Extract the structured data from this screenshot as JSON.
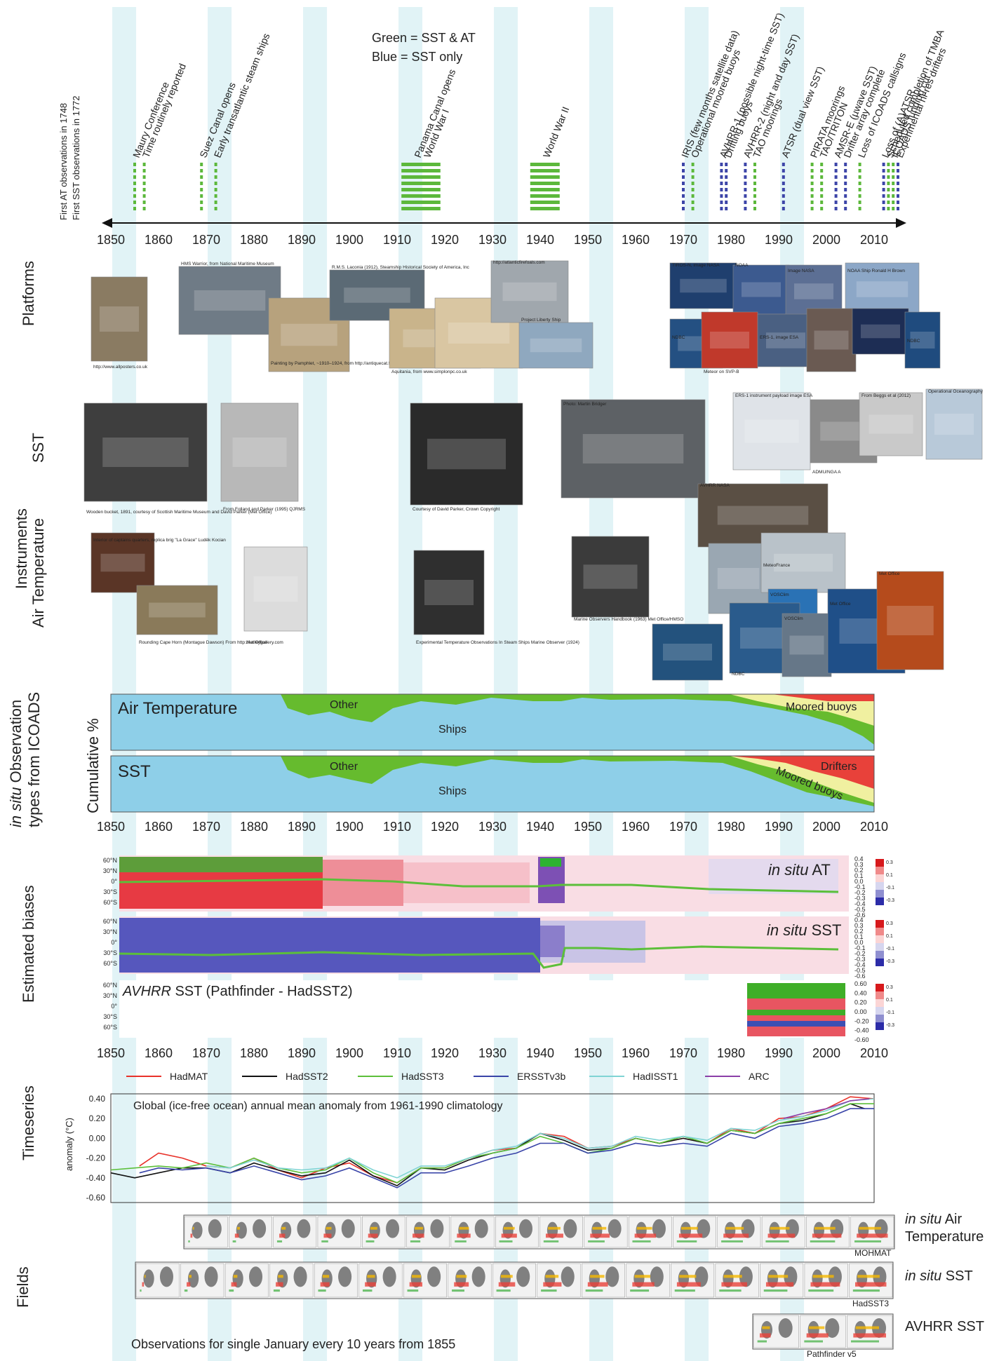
{
  "legend_top": {
    "green_text": "Green = SST & AT",
    "blue_text": "Blue = SST only"
  },
  "first_obs": [
    "First AT observations in 1748",
    "First SST observations in 1772"
  ],
  "years_axis": [
    "1850",
    "1860",
    "1870",
    "1880",
    "1890",
    "1900",
    "1910",
    "1920",
    "1930",
    "1940",
    "1950",
    "1960",
    "1970",
    "1980",
    "1990",
    "2000",
    "2010"
  ],
  "events": [
    {
      "year": 1855,
      "label": "Maury Conference",
      "color": "green",
      "bars": 1
    },
    {
      "year": 1857,
      "label": "Time routinely reported",
      "color": "green",
      "bars": 1
    },
    {
      "year": 1869,
      "label": "Suez Canal opens",
      "color": "green",
      "bars": 1
    },
    {
      "year": 1872,
      "label": "Early transatlantic steam ships",
      "color": "green",
      "bars": 1
    },
    {
      "year": 1914,
      "label": "Panama Canal opens",
      "color": "green",
      "bars": 8
    },
    {
      "year": 1916,
      "label": "World War I",
      "color": "green",
      "bars": 8
    },
    {
      "year": 1941,
      "label": "World War II",
      "color": "green",
      "bars": 7
    },
    {
      "year": 1970,
      "label": "IRIS (few months satellite data)",
      "color": "blue",
      "bars": 1
    },
    {
      "year": 1972,
      "label": "Operational moored buoys",
      "color": "green",
      "bars": 1
    },
    {
      "year": 1978,
      "label": "AVHRR-1 (possible night-time SST)",
      "color": "blue",
      "bars": 1
    },
    {
      "year": 1979,
      "label": "Drifting buoys",
      "color": "blue",
      "bars": 1
    },
    {
      "year": 1983,
      "label": "AVHRR-2 (night and day SST)",
      "color": "blue",
      "bars": 1
    },
    {
      "year": 1985,
      "label": "TAO moorings",
      "color": "green",
      "bars": 1
    },
    {
      "year": 1991,
      "label": "ATSR (dual view SST)",
      "color": "blue",
      "bars": 1
    },
    {
      "year": 1997,
      "label": "PIRATA moorings",
      "color": "green",
      "bars": 1
    },
    {
      "year": 1999,
      "label": "TAO/TRITON",
      "color": "green",
      "bars": 1
    },
    {
      "year": 2002,
      "label": "AMSR-E (µwave SST)",
      "color": "blue",
      "bars": 1
    },
    {
      "year": 2004,
      "label": "Drifter array complete",
      "color": "blue",
      "bars": 1
    },
    {
      "year": 2007,
      "label": "Loss of ICOADS callsigns",
      "color": "green",
      "bars": 1
    },
    {
      "year": 2012,
      "label": "Loss of (A)ATSR",
      "color": "blue",
      "bars": 1
    },
    {
      "year": 2013,
      "label": "Scheduled completion of TMBA",
      "color": "green",
      "bars": 1
    },
    {
      "year": 2014,
      "label": "ICOADS funding cut",
      "color": "green",
      "bars": 1
    },
    {
      "year": 2015,
      "label": "Experimental hi-res drifters",
      "color": "blue",
      "bars": 1
    }
  ],
  "sections": {
    "platforms": "Platforms",
    "instruments_sst": "SST",
    "instruments": "Instruments",
    "instruments_at": "Air Temperature",
    "insitu_obs_1": "in situ",
    "insitu_obs_2": " Observation",
    "insitu_obs_3": "types from ICOADS",
    "cumulative": "Cumulative %",
    "biases": "Estimated biases",
    "timeseries": "Timeseries",
    "fields": "Fields"
  },
  "platform_captions": [
    "http://www.allposters.co.uk",
    "HMS Warrior, from National Maritime Museum",
    "Painting by Pamphlet, ~1910–1924, from http://antiquecat.flinkblue.etherford.com",
    "R.M.S. Laconia (1912), Steamship Historical Society of America, Inc",
    "Aquitania, from www.simplonpc.co.uk",
    "http://atlanticfirefoals.com",
    "Project Liberty Ship",
    "TIROS-N, image NASA",
    "NOAA",
    "Image NASA",
    "NOAA Ship Ronald H Brown",
    "NDBC",
    "Meteor on SVP-B",
    "ERS-1, image ESA",
    "NDBC"
  ],
  "instrument_captions": [
    "Wooden bucket, 1891, courtesy of Scottish Maritime Museum and David Parker (Met Office)",
    "From Folland and Parker (1995) QJRMS",
    "Courtesy of David Parker, Crown Copyright",
    "Photo: Martin Bridger",
    "ERS-1 instrument payload image ESA",
    "AVHRR NASA",
    "From Beggs et al (2012)",
    "Operational Oceanography",
    "ADMU/NGA A",
    "Interior of captains quarters, replica brig \"La Grace\" Luděk Kocian",
    "Rounding Cape Horn (Montague Dawson) From http://valleygallery.com",
    "Met Office",
    "Experimental Temperature Observations In Steam Ships Marine Observer (1924)",
    "Marine Observers Handbook (1963) Met Office/HMSO",
    "MeteoFrance",
    "VOSClim",
    "VOSClim",
    "Met Office",
    "NDBC",
    "NDBC",
    "MeteoFrance"
  ],
  "obs_types": {
    "at_title": "Air Temperature",
    "sst_title": "SST",
    "other": "Other",
    "ships": "Ships",
    "moored_buoys": "Moored buoys",
    "drifters": "Drifters",
    "colors": {
      "ships": "#8ecfe8",
      "other": "#66bb2e",
      "moored": "#f0f0a0",
      "drifters": "#e8413a"
    }
  },
  "bias_panels": {
    "at_label_italic": "in situ",
    "at_label": " AT",
    "sst_label_italic": "in situ",
    "sst_label": " SST",
    "avhrr_label_italic": "AVHRR",
    "avhrr_label": " SST (Pathfinder - HadSST2)",
    "lat_ticks": [
      "60°N",
      "30°N",
      "0°",
      "30°S",
      "60°S"
    ],
    "right_ticks": [
      "0.4",
      "0.3",
      "0.2",
      "0.1",
      "0.0",
      "-0.1",
      "-0.2",
      "-0.3",
      "-0.4",
      "-0.5",
      "-0.6"
    ],
    "right_ticks_avhrr": [
      "0.60",
      "0.40",
      "0.20",
      "0.00",
      "-0.20",
      "-0.40",
      "-0.60"
    ],
    "cbar_ticks": [
      "0.3",
      "0.1",
      "-0.1",
      "-0.3"
    ]
  },
  "timeseries_legend": [
    {
      "name": "HadMAT",
      "color": "#e8322a"
    },
    {
      "name": "HadSST2",
      "color": "#111111"
    },
    {
      "name": "HadSST3",
      "color": "#5cbf3a"
    },
    {
      "name": "ERSSTv3b",
      "color": "#3944a8"
    },
    {
      "name": "HadISST1",
      "color": "#7fd4d4"
    },
    {
      "name": "ARC",
      "color": "#8b3fa8"
    }
  ],
  "timeseries_title": "Global (ice-free ocean) annual mean  anomaly from 1961-1990 climatology",
  "timeseries_ylabel": "anomaly (°C)",
  "timeseries_yticks": [
    "0.40",
    "0.20",
    "0.00",
    "-0.20",
    "-0.40",
    "-0.60"
  ],
  "fields": {
    "at_italic": "in situ",
    "at_label_1": " Air",
    "at_label_2": "Temperature",
    "at_source": "MOHMAT",
    "sst_italic": "in situ",
    "sst_label": " SST",
    "sst_source": "HadSST3",
    "avhrr_label": "AVHRR SST",
    "avhrr_source": "Pathfinder v5",
    "footer": "Observations for single January every 10 years from 1855"
  },
  "chart_data": {
    "type": "line",
    "title": "Global (ice-free ocean) annual mean  anomaly from 1961-1990 climatology",
    "xlabel": "",
    "ylabel": "anomaly (°C)",
    "xlim": [
      1850,
      2010
    ],
    "ylim": [
      -0.65,
      0.45
    ],
    "series": [
      {
        "name": "HadMAT",
        "x": [
          1856,
          1860,
          1865,
          1870,
          1875,
          1880,
          1885,
          1890,
          1895,
          1900,
          1905,
          1910,
          1915,
          1920,
          1925,
          1930,
          1935,
          1940,
          1945,
          1950,
          1955,
          1960,
          1965,
          1970,
          1975,
          1980,
          1985,
          1990,
          1995,
          2000,
          2005,
          2010
        ],
        "y": [
          -0.28,
          -0.15,
          -0.2,
          -0.28,
          -0.3,
          -0.2,
          -0.32,
          -0.4,
          -0.3,
          -0.25,
          -0.38,
          -0.45,
          -0.3,
          -0.3,
          -0.2,
          -0.12,
          -0.1,
          0.05,
          0.02,
          -0.1,
          -0.08,
          0.0,
          -0.05,
          0.0,
          -0.05,
          0.1,
          0.05,
          0.2,
          0.22,
          0.3,
          0.42,
          0.4
        ]
      },
      {
        "name": "HadSST2",
        "x": [
          1850,
          1855,
          1860,
          1865,
          1870,
          1875,
          1880,
          1885,
          1890,
          1895,
          1900,
          1905,
          1910,
          1915,
          1920,
          1925,
          1930,
          1935,
          1940,
          1945,
          1950,
          1955,
          1960,
          1965,
          1970,
          1975,
          1980,
          1985,
          1990,
          1995,
          2000,
          2005,
          2008
        ],
        "y": [
          -0.35,
          -0.4,
          -0.35,
          -0.3,
          -0.3,
          -0.35,
          -0.25,
          -0.32,
          -0.38,
          -0.35,
          -0.22,
          -0.38,
          -0.48,
          -0.3,
          -0.32,
          -0.22,
          -0.15,
          -0.1,
          0.05,
          -0.02,
          -0.12,
          -0.1,
          0.0,
          -0.05,
          0.0,
          -0.05,
          0.08,
          0.05,
          0.15,
          0.18,
          0.25,
          0.35,
          0.3
        ]
      },
      {
        "name": "HadSST3",
        "x": [
          1850,
          1855,
          1860,
          1865,
          1870,
          1875,
          1880,
          1885,
          1890,
          1895,
          1900,
          1905,
          1910,
          1915,
          1920,
          1925,
          1930,
          1935,
          1940,
          1945,
          1950,
          1955,
          1960,
          1965,
          1970,
          1975,
          1980,
          1985,
          1990,
          1995,
          2000,
          2005,
          2010
        ],
        "y": [
          -0.32,
          -0.3,
          -0.28,
          -0.3,
          -0.25,
          -0.3,
          -0.2,
          -0.3,
          -0.35,
          -0.32,
          -0.2,
          -0.35,
          -0.45,
          -0.3,
          -0.3,
          -0.2,
          -0.15,
          -0.1,
          0.02,
          -0.05,
          -0.15,
          -0.1,
          0.0,
          -0.05,
          0.02,
          -0.05,
          0.08,
          0.05,
          0.15,
          0.2,
          0.25,
          0.35,
          0.35
        ]
      },
      {
        "name": "ERSSTv3b",
        "x": [
          1856,
          1860,
          1865,
          1870,
          1875,
          1880,
          1885,
          1890,
          1895,
          1900,
          1905,
          1910,
          1915,
          1920,
          1925,
          1930,
          1935,
          1940,
          1945,
          1950,
          1955,
          1960,
          1965,
          1970,
          1975,
          1980,
          1985,
          1990,
          1995,
          2000,
          2005,
          2010
        ],
        "y": [
          -0.35,
          -0.3,
          -0.32,
          -0.3,
          -0.35,
          -0.28,
          -0.35,
          -0.42,
          -0.38,
          -0.3,
          -0.4,
          -0.5,
          -0.35,
          -0.35,
          -0.28,
          -0.2,
          -0.15,
          -0.05,
          -0.05,
          -0.15,
          -0.12,
          -0.05,
          -0.08,
          -0.05,
          -0.08,
          0.05,
          0.0,
          0.12,
          0.15,
          0.2,
          0.3,
          0.3
        ]
      },
      {
        "name": "HadISST1",
        "x": [
          1870,
          1875,
          1880,
          1885,
          1890,
          1895,
          1900,
          1905,
          1910,
          1915,
          1920,
          1925,
          1930,
          1935,
          1940,
          1945,
          1950,
          1955,
          1960,
          1965,
          1970,
          1975,
          1980,
          1985,
          1990,
          1995,
          2000,
          2005,
          2010
        ],
        "y": [
          -0.28,
          -0.3,
          -0.22,
          -0.3,
          -0.32,
          -0.3,
          -0.2,
          -0.32,
          -0.4,
          -0.28,
          -0.28,
          -0.2,
          -0.12,
          -0.08,
          0.05,
          0.0,
          -0.1,
          -0.08,
          0.02,
          -0.02,
          0.02,
          -0.02,
          0.1,
          0.08,
          0.18,
          0.22,
          0.28,
          0.38,
          0.4
        ]
      },
      {
        "name": "ARC",
        "x": [
          1991,
          1995,
          2000,
          2005,
          2009
        ],
        "y": [
          0.2,
          0.25,
          0.3,
          0.38,
          0.4
        ]
      }
    ]
  }
}
